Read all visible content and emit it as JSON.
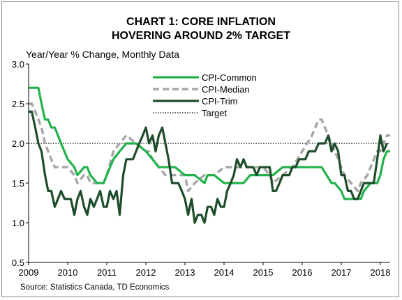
{
  "chart_data": {
    "type": "line",
    "title": [
      "CHART 1: CORE INFLATION",
      "HOVERING AROUND 2% TARGET"
    ],
    "ylabel": "Year/Year % Change, Monthly Data",
    "source": "Source: Statistics Canada, TD Economics",
    "ylim": [
      0.5,
      3.0
    ],
    "yticks": [
      "0.5",
      "1.0",
      "1.5",
      "2.0",
      "2.5",
      "3.0"
    ],
    "xlim": [
      2009.0,
      2018.25
    ],
    "xticks": [
      "2009",
      "2010",
      "2011",
      "2012",
      "2013",
      "2014",
      "2015",
      "2016",
      "2017",
      "2018"
    ],
    "grid": false,
    "legend_position": "top-center",
    "series": [
      {
        "name": "CPI-Common",
        "color": "#21b24b",
        "style": "solid",
        "x": [
          2009.0,
          2009.25,
          2009.33,
          2009.42,
          2009.5,
          2009.58,
          2009.67,
          2009.75,
          2009.83,
          2010.0,
          2010.17,
          2010.25,
          2010.42,
          2010.5,
          2010.58,
          2010.75,
          2010.92,
          2011.0,
          2011.17,
          2011.33,
          2011.5,
          2011.75,
          2012.0,
          2012.17,
          2012.33,
          2012.5,
          2012.75,
          2013.0,
          2013.25,
          2013.5,
          2013.58,
          2013.75,
          2014.0,
          2014.25,
          2014.5,
          2014.67,
          2014.92,
          2015.0,
          2015.25,
          2015.5,
          2015.75,
          2016.0,
          2016.25,
          2016.5,
          2016.75,
          2016.83,
          2017.0,
          2017.08,
          2017.25,
          2017.5,
          2017.58,
          2017.75,
          2017.92,
          2018.0,
          2018.08,
          2018.17,
          2018.25
        ],
        "values": [
          2.7,
          2.7,
          2.5,
          2.3,
          2.3,
          2.2,
          2.2,
          2.1,
          2.0,
          1.8,
          1.7,
          1.6,
          1.7,
          1.7,
          1.6,
          1.5,
          1.5,
          1.6,
          1.8,
          1.9,
          2.0,
          2.0,
          1.9,
          1.8,
          1.7,
          1.7,
          1.7,
          1.6,
          1.6,
          1.5,
          1.6,
          1.6,
          1.5,
          1.5,
          1.5,
          1.6,
          1.6,
          1.6,
          1.6,
          1.7,
          1.7,
          1.7,
          1.7,
          1.7,
          1.5,
          1.5,
          1.4,
          1.3,
          1.3,
          1.3,
          1.4,
          1.5,
          1.5,
          1.6,
          1.8,
          1.9,
          1.9
        ]
      },
      {
        "name": "CPI-Median",
        "color": "#a6a6a6",
        "style": "dashed",
        "x": [
          2009.0,
          2009.08,
          2009.17,
          2009.25,
          2009.33,
          2009.42,
          2009.5,
          2009.58,
          2009.67,
          2009.75,
          2010.0,
          2010.17,
          2010.25,
          2010.42,
          2010.5,
          2010.58,
          2010.75,
          2010.92,
          2011.0,
          2011.17,
          2011.33,
          2011.5,
          2011.75,
          2012.0,
          2012.08,
          2012.17,
          2012.33,
          2012.5,
          2012.75,
          2013.0,
          2013.08,
          2013.25,
          2013.5,
          2013.75,
          2014.0,
          2014.25,
          2014.5,
          2014.75,
          2015.0,
          2015.17,
          2015.25,
          2015.5,
          2015.75,
          2016.0,
          2016.25,
          2016.42,
          2016.5,
          2016.58,
          2016.75,
          2016.92,
          2017.0,
          2017.08,
          2017.25,
          2017.42,
          2017.5,
          2017.67,
          2017.75,
          2017.92,
          2018.0,
          2018.08,
          2018.17,
          2018.25
        ],
        "values": [
          2.5,
          2.5,
          2.4,
          2.3,
          2.2,
          2.0,
          1.9,
          1.8,
          1.7,
          1.7,
          1.7,
          1.6,
          1.5,
          1.6,
          1.6,
          1.5,
          1.5,
          1.5,
          1.6,
          1.9,
          2.0,
          2.1,
          2.0,
          1.9,
          1.9,
          1.8,
          1.7,
          1.6,
          1.6,
          1.6,
          1.4,
          1.5,
          1.6,
          1.6,
          1.7,
          1.7,
          1.7,
          1.7,
          1.7,
          1.6,
          1.5,
          1.6,
          1.7,
          1.9,
          2.1,
          2.3,
          2.3,
          2.2,
          2.0,
          1.8,
          1.7,
          1.6,
          1.5,
          1.4,
          1.5,
          1.6,
          1.7,
          1.9,
          1.9,
          2.0,
          2.1,
          2.1
        ]
      },
      {
        "name": "CPI-Trim",
        "color": "#1e4d2b",
        "style": "solid",
        "x": [
          2009.0,
          2009.08,
          2009.17,
          2009.25,
          2009.33,
          2009.42,
          2009.5,
          2009.58,
          2009.67,
          2009.75,
          2009.83,
          2009.92,
          2010.0,
          2010.08,
          2010.17,
          2010.25,
          2010.33,
          2010.42,
          2010.5,
          2010.58,
          2010.67,
          2010.75,
          2010.83,
          2010.92,
          2011.0,
          2011.08,
          2011.17,
          2011.25,
          2011.33,
          2011.42,
          2011.5,
          2011.58,
          2011.67,
          2011.75,
          2011.83,
          2011.92,
          2012.0,
          2012.08,
          2012.17,
          2012.25,
          2012.33,
          2012.42,
          2012.5,
          2012.58,
          2012.67,
          2012.75,
          2012.83,
          2012.92,
          2013.0,
          2013.08,
          2013.17,
          2013.25,
          2013.33,
          2013.42,
          2013.5,
          2013.58,
          2013.67,
          2013.75,
          2013.83,
          2013.92,
          2014.0,
          2014.08,
          2014.17,
          2014.25,
          2014.33,
          2014.42,
          2014.5,
          2014.58,
          2014.67,
          2014.75,
          2014.83,
          2014.92,
          2015.0,
          2015.08,
          2015.17,
          2015.25,
          2015.33,
          2015.42,
          2015.5,
          2015.58,
          2015.67,
          2015.75,
          2015.83,
          2015.92,
          2016.0,
          2016.08,
          2016.17,
          2016.25,
          2016.33,
          2016.42,
          2016.5,
          2016.58,
          2016.67,
          2016.75,
          2016.83,
          2016.92,
          2017.0,
          2017.08,
          2017.17,
          2017.25,
          2017.33,
          2017.42,
          2017.5,
          2017.58,
          2017.67,
          2017.75,
          2017.83,
          2017.92,
          2018.0,
          2018.08,
          2018.17
        ],
        "values": [
          2.4,
          2.4,
          2.2,
          2.0,
          1.9,
          1.6,
          1.4,
          1.4,
          1.2,
          1.3,
          1.4,
          1.3,
          1.3,
          1.3,
          1.1,
          1.3,
          1.4,
          1.2,
          1.1,
          1.3,
          1.2,
          1.3,
          1.4,
          1.2,
          1.2,
          1.4,
          1.3,
          1.4,
          1.1,
          1.6,
          1.8,
          1.8,
          1.8,
          1.9,
          2.0,
          2.1,
          2.2,
          2.0,
          2.1,
          1.9,
          2.1,
          2.2,
          2.0,
          1.8,
          1.5,
          1.5,
          1.5,
          1.4,
          1.3,
          1.1,
          1.3,
          1.0,
          1.1,
          1.1,
          1.0,
          1.2,
          1.2,
          1.1,
          1.3,
          1.2,
          1.2,
          1.4,
          1.5,
          1.6,
          1.8,
          1.7,
          1.8,
          1.7,
          1.7,
          1.7,
          1.6,
          1.7,
          1.7,
          1.7,
          1.7,
          1.4,
          1.4,
          1.5,
          1.6,
          1.6,
          1.6,
          1.7,
          1.7,
          1.8,
          1.8,
          1.8,
          1.9,
          1.9,
          1.9,
          2.0,
          2.0,
          2.0,
          2.1,
          1.9,
          2.0,
          1.9,
          1.6,
          1.6,
          1.4,
          1.4,
          1.3,
          1.3,
          1.4,
          1.5,
          1.5,
          1.5,
          1.5,
          1.8,
          2.1,
          1.9,
          2.0
        ]
      }
    ],
    "reference_lines": [
      {
        "name": "Target",
        "y": 2.0,
        "color": "#000000",
        "style": "dotted"
      }
    ]
  }
}
